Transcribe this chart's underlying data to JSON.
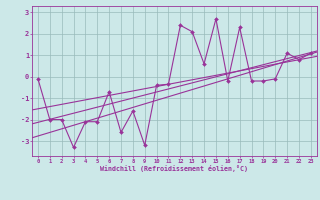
{
  "xlabel": "Windchill (Refroidissement éolien,°C)",
  "bg_color": "#cce8e8",
  "line_color": "#993399",
  "grid_color": "#99bbbb",
  "x_data": [
    0,
    1,
    2,
    3,
    4,
    5,
    6,
    7,
    8,
    9,
    10,
    11,
    12,
    13,
    14,
    15,
    16,
    17,
    18,
    19,
    20,
    21,
    22,
    23
  ],
  "y_data": [
    -0.1,
    -2.0,
    -2.0,
    -3.3,
    -2.1,
    -2.1,
    -0.7,
    -2.6,
    -1.6,
    -3.2,
    -0.4,
    -0.35,
    2.4,
    2.1,
    0.6,
    2.7,
    -0.2,
    2.3,
    -0.2,
    -0.2,
    -0.1,
    1.1,
    0.8,
    1.1
  ],
  "reg_lines": [
    [
      -2.2,
      1.2
    ],
    [
      -1.55,
      0.95
    ],
    [
      -2.85,
      1.15
    ]
  ],
  "xlim": [
    -0.5,
    23.5
  ],
  "ylim": [
    -3.7,
    3.3
  ],
  "xticks": [
    0,
    1,
    2,
    3,
    4,
    5,
    6,
    7,
    8,
    9,
    10,
    11,
    12,
    13,
    14,
    15,
    16,
    17,
    18,
    19,
    20,
    21,
    22,
    23
  ],
  "yticks": [
    -3,
    -2,
    -1,
    0,
    1,
    2,
    3
  ],
  "marker_size": 2.0,
  "line_width": 0.8
}
